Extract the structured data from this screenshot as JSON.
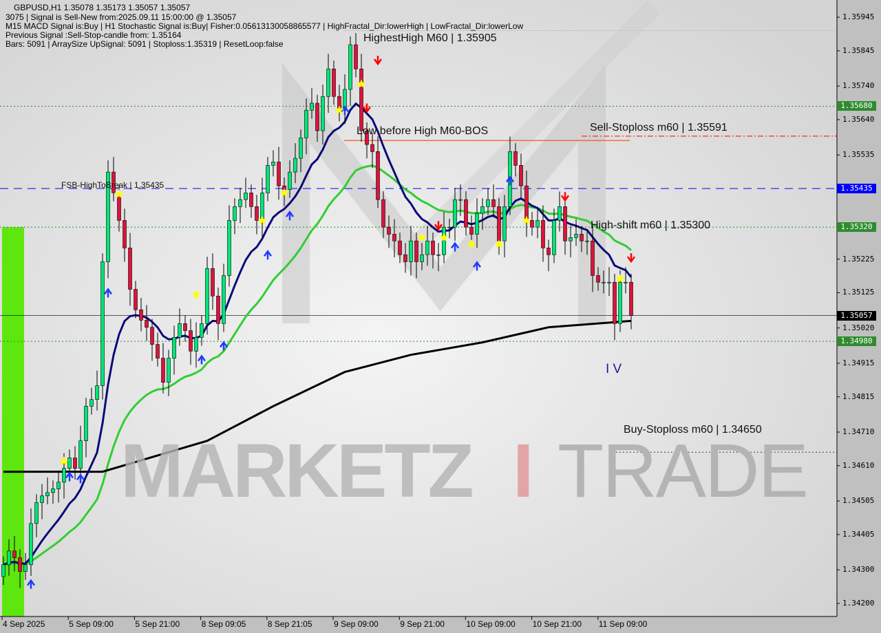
{
  "header": {
    "symbol_line": "GBPUSD,H1  1.35078 1.35173 1.35057 1.35057",
    "signal_line": "3075 | Signal is Sell-New from:2025.09.11 15:00:00 @ 1.35057",
    "macd_line": "M15 MACD Signal is:Buy | H1 Stochastic Signal is:Buy| Fisher:0.05613130058865577 | HighFractal_Dir:lowerHigh | LowFractal_Dir:lowerLow",
    "previous_line": "Previous Signal :Sell-Stop-candle from: 1.35164",
    "bars_line": "Bars: 5091 | ArraySize UpSignal: 5091 | Stoploss:1.35319 | ResetLoop:false"
  },
  "annotations": {
    "highest_high": "HighestHigh   M60 | 1.35905",
    "low_before_high": "Low before High   M60-BOS",
    "sell_stoploss": "Sell-Stoploss m60 | 1.35591",
    "fsb": "FSB-HighToBreak | 1.35435",
    "high_shift": "High-shift m60 | 1.35300",
    "buy_stoploss": "Buy-Stoploss m60 | 1.34650",
    "wave": "I V"
  },
  "watermark": {
    "part1": "MARKETZ",
    "part2": "I",
    "part3": "TRADE"
  },
  "colors": {
    "bull": "#00e676",
    "bear": "#dc143c",
    "ma_fast": "#0a0a78",
    "ma_mid": "#32cd32",
    "ma_slow": "#000000",
    "buy_arrow": "#1e3cff",
    "sell_arrow": "#ff0000",
    "star": "#ffff00",
    "zone": "#5ee60f"
  },
  "chart_data": {
    "type": "candlestick",
    "symbol": "GBPUSD",
    "timeframe": "H1",
    "ylim": [
      1.342,
      1.35945
    ],
    "price_ticks": [
      "1.35945",
      "1.35845",
      "1.35740",
      "1.35640",
      "1.35535",
      "1.35225",
      "1.35125",
      "1.35020",
      "1.34915",
      "1.34815",
      "1.34710",
      "1.34610",
      "1.34505",
      "1.34405",
      "1.34300",
      "1.34200"
    ],
    "time_ticks": [
      "4 Sep 2025",
      "5 Sep 09:00",
      "5 Sep 21:00",
      "8 Sep 09:05",
      "8 Sep 21:05",
      "9 Sep 09:00",
      "9 Sep 21:00",
      "10 Sep 09:00",
      "10 Sep 21:00",
      "11 Sep 09:00"
    ],
    "first_open": 1.3428,
    "closes": [
      1.34315,
      1.34356,
      1.34336,
      1.34295,
      1.34315,
      1.34438,
      1.345,
      1.3452,
      1.3453,
      1.34541,
      1.34561,
      1.34602,
      1.34633,
      1.34602,
      1.34684,
      1.34787,
      1.34807,
      1.34848,
      1.35217,
      1.35484,
      1.35422,
      1.3534,
      1.35258,
      1.35135,
      1.35074,
      1.35043,
      1.35022,
      1.34971,
      1.3493,
      1.34858,
      1.3493,
      1.34992,
      1.35033,
      1.35012,
      1.34951,
      1.34992,
      1.35033,
      1.35197,
      1.35115,
      1.35033,
      1.35176,
      1.3534,
      1.35381,
      1.35402,
      1.35422,
      1.35381,
      1.3534,
      1.35422,
      1.35504,
      1.35514,
      1.35443,
      1.35432,
      1.35484,
      1.35525,
      1.35586,
      1.35668,
      1.35689,
      1.35607,
      1.35709,
      1.35791,
      1.35709,
      1.35668,
      1.3573,
      1.35863,
      1.35791,
      1.35607,
      1.35566,
      1.35545,
      1.35402,
      1.3532,
      1.35299,
      1.35279,
      1.35238,
      1.35217,
      1.35279,
      1.35217,
      1.35238,
      1.35279,
      1.35238,
      1.35238,
      1.3532,
      1.3532,
      1.35402,
      1.35402,
      1.3532,
      1.35299,
      1.35361,
      1.35381,
      1.35402,
      1.35381,
      1.35279,
      1.35381,
      1.35545,
      1.35504,
      1.35443,
      1.3534,
      1.3532,
      1.3534,
      1.35258,
      1.35238,
      1.3534,
      1.35381,
      1.35279,
      1.35289,
      1.35299,
      1.35279,
      1.35279,
      1.35176,
      1.35156,
      1.35156,
      1.35156,
      1.35033,
      1.35156,
      1.35156,
      1.35057
    ],
    "ma_slow": [
      [
        0,
        1.34592
      ],
      [
        18,
        1.34592
      ],
      [
        37,
        1.34684
      ],
      [
        49,
        1.34787
      ],
      [
        62,
        1.34889
      ],
      [
        74,
        1.3494
      ],
      [
        87,
        1.34977
      ],
      [
        99,
        1.35022
      ],
      [
        114,
        1.35041
      ]
    ],
    "levels": [
      {
        "price": 1.3568,
        "label": "1.35680",
        "color": "#228b22",
        "style": "dotted"
      },
      {
        "price": 1.35591,
        "label": "",
        "color": "#ff0000",
        "style": "dashdot"
      },
      {
        "price": 1.35435,
        "label": "1.35435",
        "color": "#0000ff",
        "style": "dashed"
      },
      {
        "price": 1.3532,
        "label": "1.35320",
        "color": "#228b22",
        "style": "dotted"
      },
      {
        "price": 1.35057,
        "label": "1.35057",
        "color": "#000000",
        "style": "solid"
      },
      {
        "price": 1.3498,
        "label": "1.34980",
        "color": "#228b22",
        "style": "dotted"
      },
      {
        "price": 1.3465,
        "label": "",
        "color": "#333333",
        "style": "dotted"
      }
    ],
    "buy_arrows": [
      [
        5,
        1.34258
      ],
      [
        12,
        1.34578
      ],
      [
        14,
        1.34572
      ],
      [
        19,
        1.35125
      ],
      [
        36,
        1.34926
      ],
      [
        40,
        1.34967
      ],
      [
        48,
        1.35238
      ],
      [
        52,
        1.35355
      ],
      [
        62,
        1.35668
      ],
      [
        82,
        1.35262
      ],
      [
        86,
        1.35205
      ],
      [
        92,
        1.35459
      ]
    ],
    "sell_arrows": [
      [
        66,
        1.35674
      ],
      [
        68,
        1.35816
      ],
      [
        79,
        1.35324
      ],
      [
        102,
        1.3541
      ],
      [
        114,
        1.35228
      ]
    ],
    "stars": [
      [
        11,
        1.34623
      ],
      [
        21,
        1.35418
      ],
      [
        35,
        1.35119
      ],
      [
        47,
        1.3534
      ],
      [
        51,
        1.35422
      ],
      [
        61,
        1.35668
      ],
      [
        65,
        1.35746
      ],
      [
        76,
        1.35289
      ],
      [
        80,
        1.35289
      ],
      [
        85,
        1.35269
      ],
      [
        90,
        1.35269
      ],
      [
        95,
        1.3534
      ],
      [
        112,
        1.35166
      ]
    ]
  }
}
